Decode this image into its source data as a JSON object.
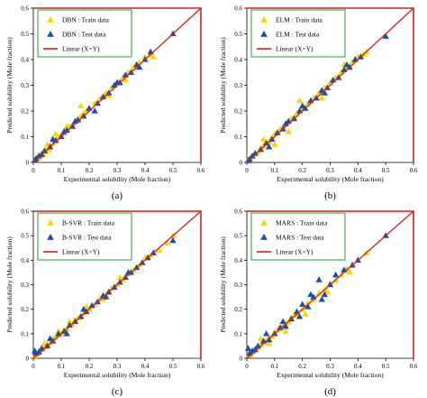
{
  "chart_data": [
    {
      "type": "scatter",
      "panel_label": "(a)",
      "xlabel": "Experimental solubility (Mole fraction)",
      "ylabel": "Predicted solubility (Mole fraction)",
      "xlim": [
        0,
        0.6
      ],
      "ylim": [
        0,
        0.6
      ],
      "xticks": [
        "0",
        "0.1",
        "0.2",
        "0.3",
        "0.4",
        "0.5",
        "0.6"
      ],
      "yticks": [
        "0",
        "0.1",
        "0.2",
        "0.3",
        "0.4",
        "0.5",
        "0.6"
      ],
      "grid": false,
      "legend_position": "top-left",
      "series": [
        {
          "name": "DBN : Train data",
          "marker": "triangle",
          "color": "#FFD500",
          "kind": "train",
          "x": [
            0.005,
            0.01,
            0.015,
            0.02,
            0.025,
            0.03,
            0.035,
            0.04,
            0.045,
            0.05,
            0.055,
            0.06,
            0.07,
            0.08,
            0.09,
            0.1,
            0.11,
            0.12,
            0.13,
            0.14,
            0.15,
            0.16,
            0.17,
            0.18,
            0.19,
            0.2,
            0.22,
            0.24,
            0.26,
            0.28,
            0.3,
            0.32,
            0.34,
            0.36,
            0.38,
            0.4,
            0.42,
            0.43,
            0.05,
            0.08,
            0.12,
            0.17,
            0.27,
            0.33
          ],
          "y": [
            0.01,
            0.012,
            0.02,
            0.018,
            0.03,
            0.035,
            0.033,
            0.045,
            0.042,
            0.055,
            0.05,
            0.065,
            0.075,
            0.085,
            0.1,
            0.105,
            0.115,
            0.125,
            0.14,
            0.145,
            0.16,
            0.17,
            0.18,
            0.19,
            0.2,
            0.21,
            0.23,
            0.25,
            0.27,
            0.29,
            0.31,
            0.33,
            0.35,
            0.37,
            0.39,
            0.41,
            0.42,
            0.41,
            0.07,
            0.11,
            0.14,
            0.22,
            0.26,
            0.32
          ]
        },
        {
          "name": "DBN : Test data",
          "marker": "triangle",
          "color": "#1450B4",
          "kind": "test",
          "x": [
            0.005,
            0.01,
            0.02,
            0.03,
            0.04,
            0.06,
            0.08,
            0.1,
            0.12,
            0.14,
            0.16,
            0.18,
            0.2,
            0.23,
            0.25,
            0.27,
            0.29,
            0.31,
            0.33,
            0.35,
            0.37,
            0.4,
            0.42,
            0.5,
            0.07,
            0.11,
            0.15,
            0.22,
            0.3,
            0.38
          ],
          "y": [
            0.008,
            0.015,
            0.025,
            0.03,
            0.045,
            0.06,
            0.085,
            0.1,
            0.125,
            0.14,
            0.165,
            0.18,
            0.21,
            0.23,
            0.255,
            0.27,
            0.3,
            0.31,
            0.34,
            0.35,
            0.38,
            0.4,
            0.43,
            0.5,
            0.09,
            0.12,
            0.16,
            0.2,
            0.31,
            0.37
          ]
        },
        {
          "name": "Linear (X=Y)",
          "type": "line",
          "color": "#D81E1E",
          "x": [
            0,
            0.6
          ],
          "y": [
            0,
            0.6
          ]
        }
      ]
    },
    {
      "type": "scatter",
      "panel_label": "(b)",
      "xlabel": "Experimental solubility (Mole fraction)",
      "ylabel": "Predicted solubility (Mole fraction)",
      "xlim": [
        0,
        0.6
      ],
      "ylim": [
        0,
        0.6
      ],
      "xticks": [
        "0",
        "0.1",
        "0.2",
        "0.3",
        "0.4",
        "0.5",
        "0.6"
      ],
      "yticks": [
        "0",
        "0.1",
        "0.2",
        "0.3",
        "0.4",
        "0.5",
        "0.6"
      ],
      "grid": false,
      "legend_position": "top-left",
      "series": [
        {
          "name": "ELM : Train data",
          "marker": "triangle",
          "color": "#FFD500",
          "kind": "train",
          "x": [
            0.005,
            0.01,
            0.015,
            0.02,
            0.03,
            0.04,
            0.05,
            0.06,
            0.07,
            0.08,
            0.09,
            0.1,
            0.11,
            0.12,
            0.13,
            0.14,
            0.15,
            0.16,
            0.17,
            0.18,
            0.2,
            0.22,
            0.24,
            0.26,
            0.28,
            0.3,
            0.32,
            0.34,
            0.36,
            0.38,
            0.4,
            0.42,
            0.43,
            0.06,
            0.1,
            0.15,
            0.19,
            0.27,
            0.35
          ],
          "y": [
            0.012,
            0.01,
            0.02,
            0.025,
            0.035,
            0.04,
            0.055,
            0.065,
            0.075,
            0.08,
            0.095,
            0.11,
            0.115,
            0.13,
            0.135,
            0.15,
            0.16,
            0.17,
            0.175,
            0.19,
            0.21,
            0.23,
            0.25,
            0.27,
            0.29,
            0.31,
            0.33,
            0.35,
            0.37,
            0.39,
            0.41,
            0.42,
            0.43,
            0.09,
            0.07,
            0.12,
            0.24,
            0.25,
            0.38
          ]
        },
        {
          "name": "ELM : Test data",
          "marker": "triangle",
          "color": "#1450B4",
          "kind": "test",
          "x": [
            0.005,
            0.01,
            0.02,
            0.03,
            0.05,
            0.07,
            0.09,
            0.11,
            0.13,
            0.15,
            0.17,
            0.19,
            0.21,
            0.23,
            0.25,
            0.27,
            0.29,
            0.31,
            0.33,
            0.35,
            0.37,
            0.39,
            0.41,
            0.5,
            0.08,
            0.14,
            0.2,
            0.28,
            0.36
          ],
          "y": [
            0.006,
            0.012,
            0.025,
            0.035,
            0.05,
            0.075,
            0.09,
            0.115,
            0.13,
            0.16,
            0.17,
            0.2,
            0.21,
            0.24,
            0.25,
            0.28,
            0.29,
            0.32,
            0.33,
            0.36,
            0.37,
            0.4,
            0.41,
            0.49,
            0.06,
            0.15,
            0.22,
            0.27,
            0.38
          ]
        },
        {
          "name": "Linear (X=Y)",
          "type": "line",
          "color": "#D81E1E",
          "x": [
            0,
            0.6
          ],
          "y": [
            0,
            0.6
          ]
        }
      ]
    },
    {
      "type": "scatter",
      "panel_label": "(c)",
      "xlabel": "Experimental solubility (Mole fraction)",
      "ylabel": "Predicted solubility (Mole fraction)",
      "xlim": [
        0,
        0.6
      ],
      "ylim": [
        0,
        0.6
      ],
      "xticks": [
        "0",
        "0.1",
        "0.2",
        "0.3",
        "0.4",
        "0.5",
        "0.6"
      ],
      "yticks": [
        "0",
        "0.1",
        "0.2",
        "0.3",
        "0.4",
        "0.5",
        "0.6"
      ],
      "grid": false,
      "legend_position": "top-left",
      "series": [
        {
          "name": "B-SVR : Train data",
          "marker": "triangle",
          "color": "#FFD500",
          "kind": "train",
          "x": [
            0.005,
            0.01,
            0.015,
            0.02,
            0.03,
            0.04,
            0.05,
            0.06,
            0.07,
            0.08,
            0.09,
            0.1,
            0.11,
            0.12,
            0.13,
            0.14,
            0.15,
            0.16,
            0.17,
            0.18,
            0.2,
            0.22,
            0.24,
            0.26,
            0.28,
            0.3,
            0.32,
            0.34,
            0.36,
            0.38,
            0.4,
            0.42,
            0.45,
            0.48,
            0.5,
            0.04,
            0.09,
            0.13,
            0.19,
            0.25,
            0.31
          ],
          "y": [
            0.01,
            0.015,
            0.02,
            0.03,
            0.035,
            0.045,
            0.055,
            0.06,
            0.08,
            0.085,
            0.095,
            0.1,
            0.115,
            0.12,
            0.135,
            0.14,
            0.155,
            0.165,
            0.17,
            0.185,
            0.2,
            0.22,
            0.245,
            0.26,
            0.285,
            0.3,
            0.32,
            0.345,
            0.36,
            0.38,
            0.41,
            0.42,
            0.44,
            0.47,
            0.5,
            0.06,
            0.11,
            0.15,
            0.21,
            0.24,
            0.33
          ]
        },
        {
          "name": "B-SVR : Test data",
          "marker": "triangle",
          "color": "#1450B4",
          "kind": "test",
          "x": [
            0.005,
            0.01,
            0.02,
            0.03,
            0.05,
            0.07,
            0.09,
            0.11,
            0.13,
            0.15,
            0.17,
            0.19,
            0.21,
            0.23,
            0.25,
            0.27,
            0.29,
            0.31,
            0.33,
            0.35,
            0.37,
            0.39,
            0.41,
            0.43,
            0.5,
            0.06,
            0.12,
            0.18,
            0.26,
            0.34
          ],
          "y": [
            0.03,
            0.02,
            0.025,
            0.04,
            0.05,
            0.07,
            0.1,
            0.11,
            0.135,
            0.15,
            0.17,
            0.19,
            0.215,
            0.23,
            0.255,
            0.27,
            0.29,
            0.31,
            0.33,
            0.35,
            0.37,
            0.39,
            0.41,
            0.43,
            0.48,
            0.08,
            0.1,
            0.2,
            0.25,
            0.35
          ]
        },
        {
          "name": "Linear (X=Y)",
          "type": "line",
          "color": "#D81E1E",
          "x": [
            0,
            0.6
          ],
          "y": [
            0,
            0.6
          ]
        }
      ]
    },
    {
      "type": "scatter",
      "panel_label": "(d)",
      "xlabel": "Experimental solubility (Mole fraction)",
      "ylabel": "Predicted solubility (Mole fraction)",
      "xlim": [
        0,
        0.6
      ],
      "ylim": [
        0,
        0.6
      ],
      "xticks": [
        "0",
        "0.1",
        "0.2",
        "0.3",
        "0.4",
        "0.5",
        "0.6"
      ],
      "yticks": [
        "0",
        "0.1",
        "0.2",
        "0.3",
        "0.4",
        "0.5",
        "0.6"
      ],
      "grid": false,
      "legend_position": "top-left",
      "series": [
        {
          "name": "MARS : Train data",
          "marker": "triangle",
          "color": "#FFD500",
          "kind": "train",
          "x": [
            0.005,
            0.01,
            0.015,
            0.02,
            0.03,
            0.04,
            0.05,
            0.06,
            0.07,
            0.08,
            0.09,
            0.1,
            0.11,
            0.12,
            0.13,
            0.14,
            0.15,
            0.16,
            0.17,
            0.18,
            0.2,
            0.22,
            0.24,
            0.26,
            0.28,
            0.3,
            0.32,
            0.34,
            0.36,
            0.38,
            0.4,
            0.43,
            0.05,
            0.08,
            0.14,
            0.21,
            0.29,
            0.37
          ],
          "y": [
            0.012,
            0.015,
            0.02,
            0.028,
            0.04,
            0.045,
            0.055,
            0.065,
            0.072,
            0.085,
            0.09,
            0.105,
            0.115,
            0.12,
            0.135,
            0.145,
            0.15,
            0.165,
            0.175,
            0.18,
            0.2,
            0.225,
            0.24,
            0.265,
            0.28,
            0.305,
            0.32,
            0.34,
            0.365,
            0.38,
            0.4,
            0.43,
            0.08,
            0.06,
            0.11,
            0.18,
            0.27,
            0.35
          ]
        },
        {
          "name": "MARS : Test data",
          "marker": "triangle",
          "color": "#1450B4",
          "kind": "test",
          "x": [
            0.005,
            0.01,
            0.02,
            0.03,
            0.04,
            0.06,
            0.08,
            0.1,
            0.12,
            0.14,
            0.16,
            0.18,
            0.2,
            0.22,
            0.24,
            0.26,
            0.28,
            0.3,
            0.32,
            0.35,
            0.38,
            0.4,
            0.5,
            0.07,
            0.13,
            0.19,
            0.23,
            0.27
          ],
          "y": [
            0.04,
            0.02,
            0.03,
            0.035,
            0.05,
            0.07,
            0.075,
            0.1,
            0.125,
            0.13,
            0.16,
            0.19,
            0.22,
            0.21,
            0.25,
            0.32,
            0.26,
            0.3,
            0.34,
            0.36,
            0.38,
            0.4,
            0.5,
            0.1,
            0.15,
            0.17,
            0.26,
            0.24
          ]
        },
        {
          "name": "Linear (X=Y)",
          "type": "line",
          "color": "#D81E1E",
          "x": [
            0,
            0.6
          ],
          "y": [
            0,
            0.6
          ]
        }
      ]
    }
  ]
}
